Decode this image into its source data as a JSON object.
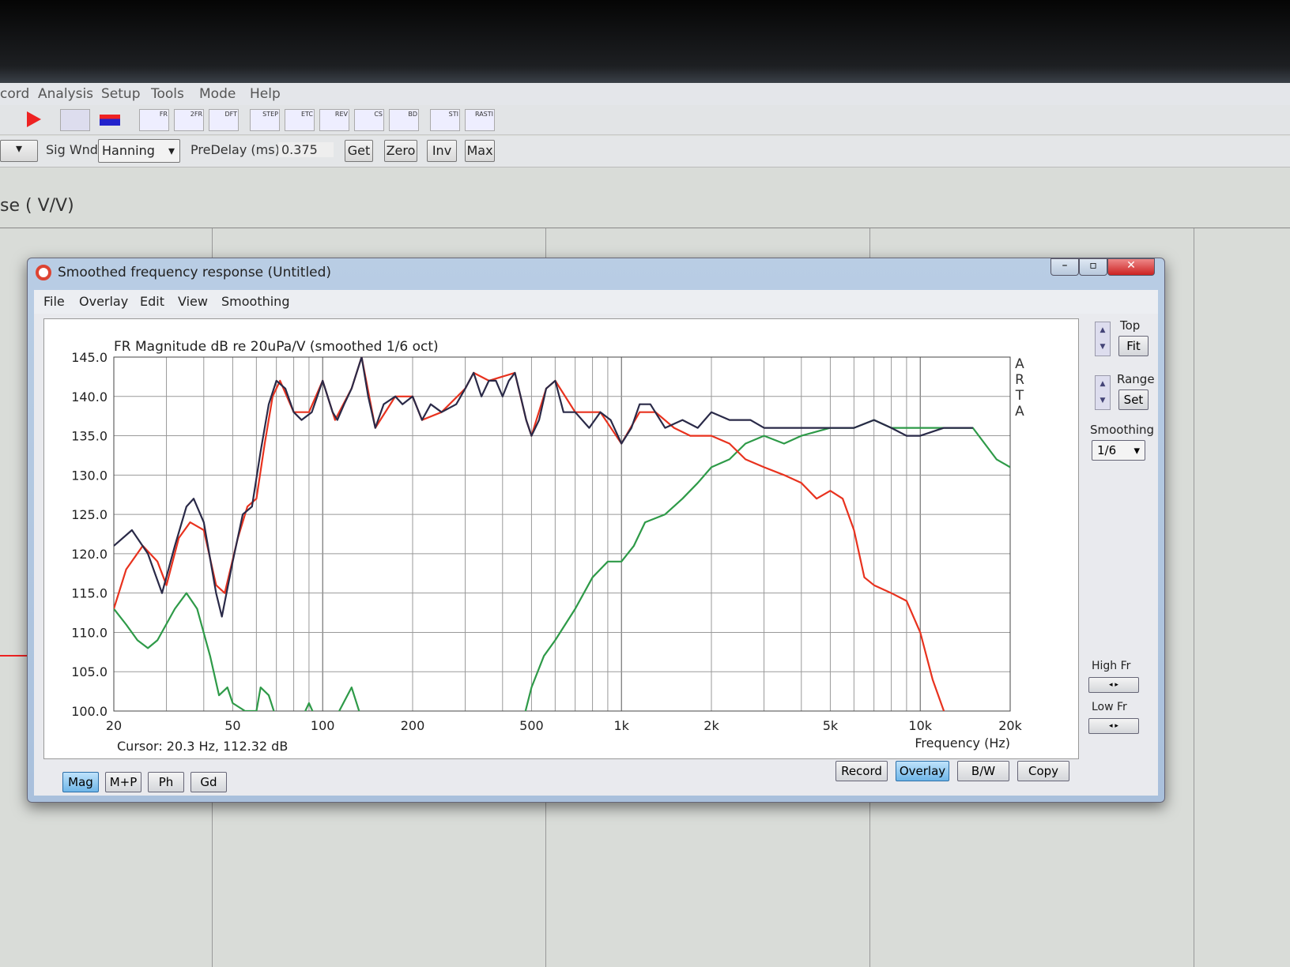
{
  "main_window": {
    "menu": [
      "cord",
      "Analysis",
      "Setup",
      "Tools",
      "Mode",
      "Help"
    ],
    "toolbar": [
      "FR",
      "2FR",
      "DFT",
      "STEP",
      "ETC",
      "REV",
      "CS",
      "BD",
      "STI",
      "RASTI"
    ],
    "sig_wnd_label": "Sig Wnd",
    "sig_wnd_value": "Hanning",
    "predelay_label": "PreDelay (ms)",
    "predelay_value": "0.375",
    "buttons": [
      "Get",
      "Zero",
      "Inv",
      "Max"
    ],
    "background_title": "se ( V/V)"
  },
  "window": {
    "title": "Smoothed frequency response (Untitled)",
    "menu": [
      "File",
      "Overlay",
      "Edit",
      "View",
      "Smoothing"
    ],
    "side": {
      "top_label": "Top",
      "fit": "Fit",
      "range_label": "Range",
      "set": "Set",
      "smoothing_label": "Smoothing",
      "smoothing_value": "1/6",
      "high_fr": "High Fr",
      "low_fr": "Low Fr"
    },
    "cursor": "Cursor: 20.3 Hz, 112.32 dB",
    "bottom_left": [
      "Mag",
      "M+P",
      "Ph",
      "Gd"
    ],
    "bottom_right": [
      "Record",
      "Overlay",
      "B/W",
      "Copy"
    ],
    "watermark": "ARTA"
  },
  "chart_data": {
    "type": "line",
    "title": "FR Magnitude dB re 20uPa/V (smoothed 1/6 oct)",
    "xlabel": "Frequency (Hz)",
    "ylabel": "",
    "xscale": "log",
    "xlim": [
      20,
      20000
    ],
    "ylim": [
      100,
      145
    ],
    "xticks": [
      20,
      50,
      100,
      200,
      500,
      1000,
      2000,
      5000,
      10000,
      20000
    ],
    "xtick_labels": [
      "20",
      "50",
      "100",
      "200",
      "500",
      "1k",
      "2k",
      "5k",
      "10k",
      "20k"
    ],
    "yticks": [
      "100.0",
      "105.0",
      "110.0",
      "115.0",
      "120.0",
      "125.0",
      "130.0",
      "135.0",
      "140.0",
      "145.0"
    ],
    "grid": true,
    "series": [
      {
        "color": "#2a2a48",
        "points": [
          [
            20,
            121
          ],
          [
            23,
            123
          ],
          [
            26,
            120
          ],
          [
            29,
            115
          ],
          [
            32,
            121
          ],
          [
            35,
            126
          ],
          [
            37,
            127
          ],
          [
            40,
            124
          ],
          [
            44,
            115
          ],
          [
            46,
            112
          ],
          [
            50,
            119
          ],
          [
            54,
            125
          ],
          [
            58,
            126
          ],
          [
            62,
            133
          ],
          [
            66,
            139
          ],
          [
            70,
            142
          ],
          [
            75,
            141
          ],
          [
            80,
            138
          ],
          [
            85,
            137
          ],
          [
            92,
            138
          ],
          [
            100,
            142
          ],
          [
            108,
            138
          ],
          [
            112,
            137
          ],
          [
            118,
            139
          ],
          [
            125,
            141
          ],
          [
            135,
            145
          ],
          [
            142,
            140
          ],
          [
            150,
            136
          ],
          [
            160,
            139
          ],
          [
            175,
            140
          ],
          [
            185,
            139
          ],
          [
            200,
            140
          ],
          [
            215,
            137
          ],
          [
            230,
            139
          ],
          [
            250,
            138
          ],
          [
            280,
            139
          ],
          [
            300,
            141
          ],
          [
            320,
            143
          ],
          [
            340,
            140
          ],
          [
            360,
            142
          ],
          [
            380,
            142
          ],
          [
            400,
            140
          ],
          [
            420,
            142
          ],
          [
            440,
            143
          ],
          [
            460,
            140
          ],
          [
            480,
            137
          ],
          [
            500,
            135
          ],
          [
            530,
            137
          ],
          [
            560,
            141
          ],
          [
            600,
            142
          ],
          [
            640,
            138
          ],
          [
            700,
            138
          ],
          [
            780,
            136
          ],
          [
            850,
            138
          ],
          [
            920,
            137
          ],
          [
            1000,
            134
          ],
          [
            1080,
            136
          ],
          [
            1150,
            139
          ],
          [
            1250,
            139
          ],
          [
            1400,
            136
          ],
          [
            1600,
            137
          ],
          [
            1800,
            136
          ],
          [
            2000,
            138
          ],
          [
            2300,
            137
          ],
          [
            2700,
            137
          ],
          [
            3000,
            136
          ],
          [
            3500,
            136
          ],
          [
            4000,
            136
          ],
          [
            5000,
            136
          ],
          [
            6000,
            136
          ],
          [
            7000,
            137
          ],
          [
            8000,
            136
          ],
          [
            9000,
            135
          ],
          [
            10000,
            135
          ],
          [
            12000,
            136
          ],
          [
            15000,
            136
          ]
        ]
      },
      {
        "color": "#e8321e",
        "points": [
          [
            20,
            113
          ],
          [
            22,
            118
          ],
          [
            25,
            121
          ],
          [
            28,
            119
          ],
          [
            30,
            116
          ],
          [
            33,
            122
          ],
          [
            36,
            124
          ],
          [
            40,
            123
          ],
          [
            44,
            116
          ],
          [
            47,
            115
          ],
          [
            52,
            122
          ],
          [
            56,
            126
          ],
          [
            60,
            127
          ],
          [
            64,
            134
          ],
          [
            68,
            140
          ],
          [
            72,
            142
          ],
          [
            80,
            138
          ],
          [
            90,
            138
          ],
          [
            100,
            142
          ],
          [
            110,
            137
          ],
          [
            125,
            141
          ],
          [
            135,
            145
          ],
          [
            150,
            136
          ],
          [
            175,
            140
          ],
          [
            200,
            140
          ],
          [
            215,
            137
          ],
          [
            250,
            138
          ],
          [
            300,
            141
          ],
          [
            320,
            143
          ],
          [
            360,
            142
          ],
          [
            440,
            143
          ],
          [
            480,
            137
          ],
          [
            500,
            135
          ],
          [
            560,
            141
          ],
          [
            600,
            142
          ],
          [
            700,
            138
          ],
          [
            850,
            138
          ],
          [
            1000,
            134
          ],
          [
            1150,
            138
          ],
          [
            1300,
            138
          ],
          [
            1500,
            136
          ],
          [
            1700,
            135
          ],
          [
            2000,
            135
          ],
          [
            2300,
            134
          ],
          [
            2600,
            132
          ],
          [
            3000,
            131
          ],
          [
            3500,
            130
          ],
          [
            4000,
            129
          ],
          [
            4500,
            127
          ],
          [
            5000,
            128
          ],
          [
            5500,
            127
          ],
          [
            6000,
            123
          ],
          [
            6500,
            117
          ],
          [
            7000,
            116
          ],
          [
            8000,
            115
          ],
          [
            9000,
            114
          ],
          [
            10000,
            110
          ],
          [
            11000,
            104
          ],
          [
            12000,
            100
          ]
        ]
      },
      {
        "color": "#2e9a48",
        "points": [
          [
            20,
            113
          ],
          [
            22,
            111
          ],
          [
            24,
            109
          ],
          [
            26,
            108
          ],
          [
            28,
            109
          ],
          [
            32,
            113
          ],
          [
            35,
            115
          ],
          [
            38,
            113
          ],
          [
            42,
            107
          ],
          [
            45,
            102
          ],
          [
            48,
            103
          ],
          [
            50,
            101
          ],
          [
            55,
            100
          ],
          [
            60,
            100
          ],
          [
            62,
            103
          ],
          [
            66,
            102
          ],
          [
            70,
            99
          ],
          [
            85,
            99
          ],
          [
            90,
            101
          ],
          [
            95,
            99
          ],
          [
            110,
            99
          ],
          [
            125,
            103
          ],
          [
            135,
            99
          ],
          [
            470,
            99
          ],
          [
            500,
            103
          ],
          [
            550,
            107
          ],
          [
            600,
            109
          ],
          [
            700,
            113
          ],
          [
            800,
            117
          ],
          [
            900,
            119
          ],
          [
            1000,
            119
          ],
          [
            1100,
            121
          ],
          [
            1200,
            124
          ],
          [
            1400,
            125
          ],
          [
            1600,
            127
          ],
          [
            1800,
            129
          ],
          [
            2000,
            131
          ],
          [
            2300,
            132
          ],
          [
            2600,
            134
          ],
          [
            3000,
            135
          ],
          [
            3500,
            134
          ],
          [
            4000,
            135
          ],
          [
            5000,
            136
          ],
          [
            6000,
            136
          ],
          [
            7000,
            137
          ],
          [
            8000,
            136
          ],
          [
            9000,
            136
          ],
          [
            10000,
            136
          ],
          [
            12000,
            136
          ],
          [
            15000,
            136
          ],
          [
            18000,
            132
          ],
          [
            20000,
            131
          ]
        ]
      }
    ]
  }
}
